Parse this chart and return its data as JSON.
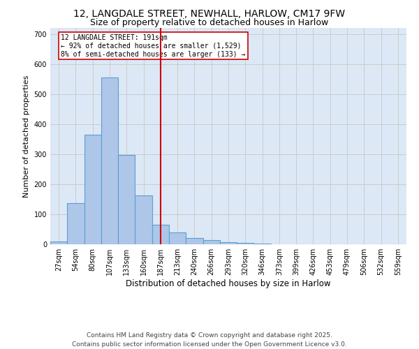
{
  "title1": "12, LANGDALE STREET, NEWHALL, HARLOW, CM17 9FW",
  "title2": "Size of property relative to detached houses in Harlow",
  "xlabel": "Distribution of detached houses by size in Harlow",
  "ylabel": "Number of detached properties",
  "categories": [
    "27sqm",
    "54sqm",
    "80sqm",
    "107sqm",
    "133sqm",
    "160sqm",
    "187sqm",
    "213sqm",
    "240sqm",
    "266sqm",
    "293sqm",
    "320sqm",
    "346sqm",
    "373sqm",
    "399sqm",
    "426sqm",
    "453sqm",
    "479sqm",
    "506sqm",
    "532sqm",
    "559sqm"
  ],
  "bar_heights": [
    10,
    136,
    365,
    555,
    298,
    163,
    65,
    40,
    22,
    15,
    8,
    5,
    2,
    1,
    1,
    0,
    0,
    0,
    0,
    0,
    0
  ],
  "bar_color": "#aec6e8",
  "bar_edge_color": "#5a9fd4",
  "bar_linewidth": 0.8,
  "red_line_index": 6,
  "red_line_color": "#cc0000",
  "annotation_text": "12 LANGDALE STREET: 191sqm\n← 92% of detached houses are smaller (1,529)\n8% of semi-detached houses are larger (133) →",
  "annotation_box_color": "#ffffff",
  "annotation_box_edge": "#cc0000",
  "ylim": [
    0,
    720
  ],
  "yticks": [
    0,
    100,
    200,
    300,
    400,
    500,
    600,
    700
  ],
  "grid_color": "#cccccc",
  "background_color": "#dce8f5",
  "footer": "Contains HM Land Registry data © Crown copyright and database right 2025.\nContains public sector information licensed under the Open Government Licence v3.0.",
  "title_fontsize": 10,
  "subtitle_fontsize": 9,
  "tick_fontsize": 7,
  "ylabel_fontsize": 8,
  "xlabel_fontsize": 8.5,
  "footer_fontsize": 6.5
}
